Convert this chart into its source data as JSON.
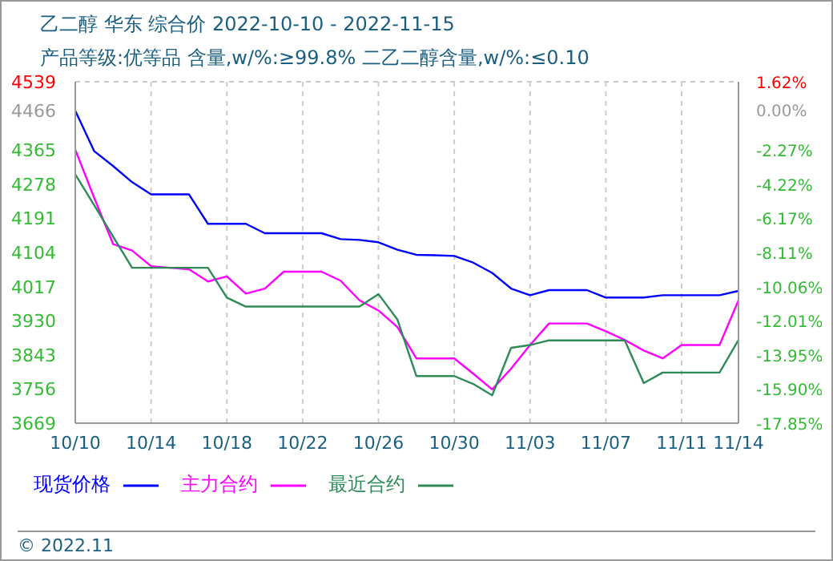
{
  "chart_data": {
    "type": "line",
    "title": "乙二醇 华东 综合价 2022-10-10 - 2022-11-15",
    "subtitle": "产品等级:优等品 含量,w/%:≥99.8% 二乙二醇含量,w/%:≤0.10",
    "x": [
      "2022-10-10",
      "2022-10-11",
      "2022-10-12",
      "2022-10-13",
      "2022-10-14",
      "2022-10-15",
      "2022-10-16",
      "2022-10-17",
      "2022-10-18",
      "2022-10-19",
      "2022-10-20",
      "2022-10-21",
      "2022-10-22",
      "2022-10-23",
      "2022-10-24",
      "2022-10-25",
      "2022-10-26",
      "2022-10-27",
      "2022-10-28",
      "2022-10-29",
      "2022-10-30",
      "2022-10-31",
      "2022-11-01",
      "2022-11-02",
      "2022-11-03",
      "2022-11-04",
      "2022-11-05",
      "2022-11-06",
      "2022-11-07",
      "2022-11-08",
      "2022-11-09",
      "2022-11-10",
      "2022-11-11",
      "2022-11-12",
      "2022-11-13",
      "2022-11-14"
    ],
    "series": [
      {
        "name": "现货价格",
        "color": "#0000ff",
        "values": [
          4465,
          4362,
          4324,
          4283,
          4252,
          4252,
          4252,
          4177,
          4177,
          4177,
          4153,
          4153,
          4153,
          4153,
          4138,
          4136,
          4130,
          4111,
          4098,
          4097,
          4095,
          4078,
          4052,
          4012,
          3995,
          4008,
          4008,
          4008,
          3989,
          3989,
          3989,
          3995,
          3995,
          3995,
          3995,
          4006
        ]
      },
      {
        "name": "主力合约",
        "color": "#ff00ff",
        "values": [
          4366,
          4243,
          4125,
          4109,
          4069,
          4065,
          4061,
          4030,
          4043,
          3999,
          4012,
          4055,
          4055,
          4055,
          4032,
          3982,
          3956,
          3914,
          3834,
          3834,
          3834,
          3795,
          3755,
          3808,
          3868,
          3923,
          3923,
          3923,
          3903,
          3881,
          3854,
          3834,
          3868,
          3868,
          3868,
          3982
        ]
      },
      {
        "name": "最近合约",
        "color": "#2e8b57",
        "values": [
          4303,
          4224,
          4144,
          4065,
          4065,
          4065,
          4065,
          4065,
          3989,
          3966,
          3966,
          3966,
          3966,
          3966,
          3966,
          3966,
          3998,
          3933,
          3789,
          3789,
          3789,
          3769,
          3740,
          3861,
          3868,
          3880,
          3880,
          3880,
          3880,
          3880,
          3771,
          3798,
          3798,
          3798,
          3798,
          3881
        ]
      }
    ],
    "xlim": [
      "2022-10-10",
      "2022-11-14"
    ],
    "xticks": [
      {
        "value": "2022-10-10",
        "label": "10/10"
      },
      {
        "value": "2022-10-14",
        "label": "10/14"
      },
      {
        "value": "2022-10-18",
        "label": "10/18"
      },
      {
        "value": "2022-10-22",
        "label": "10/22"
      },
      {
        "value": "2022-10-26",
        "label": "10/26"
      },
      {
        "value": "2022-10-30",
        "label": "10/30"
      },
      {
        "value": "2022-11-03",
        "label": "11/03"
      },
      {
        "value": "2022-11-07",
        "label": "11/07"
      },
      {
        "value": "2022-11-11",
        "label": "11/11"
      },
      {
        "value": "2022-11-14",
        "label": "11/14"
      }
    ],
    "ylim": [
      3669,
      4539
    ],
    "yticks": [
      3669,
      3756,
      3843,
      3930,
      4017,
      4104,
      4191,
      4278,
      4365,
      4466,
      4539
    ],
    "y2lim": [
      -17.85,
      1.62
    ],
    "y2ticks": [
      {
        "value": -17.85,
        "label": "-17.85%"
      },
      {
        "value": -15.9,
        "label": "-15.90%"
      },
      {
        "value": -13.95,
        "label": "-13.95%"
      },
      {
        "value": -12.01,
        "label": "-12.01%"
      },
      {
        "value": -10.06,
        "label": "-10.06%"
      },
      {
        "value": -8.11,
        "label": "-8.11%"
      },
      {
        "value": -6.17,
        "label": "-6.17%"
      },
      {
        "value": -4.22,
        "label": "-4.22%"
      },
      {
        "value": -2.27,
        "label": "-2.27%"
      },
      {
        "value": 0,
        "label": "0.00%"
      },
      {
        "value": 1.62,
        "label": "1.62%"
      }
    ],
    "grid": true,
    "legend": "bottom",
    "marker": "none",
    "line_style": "solid",
    "annotations": [
      "© 2022.11"
    ]
  }
}
